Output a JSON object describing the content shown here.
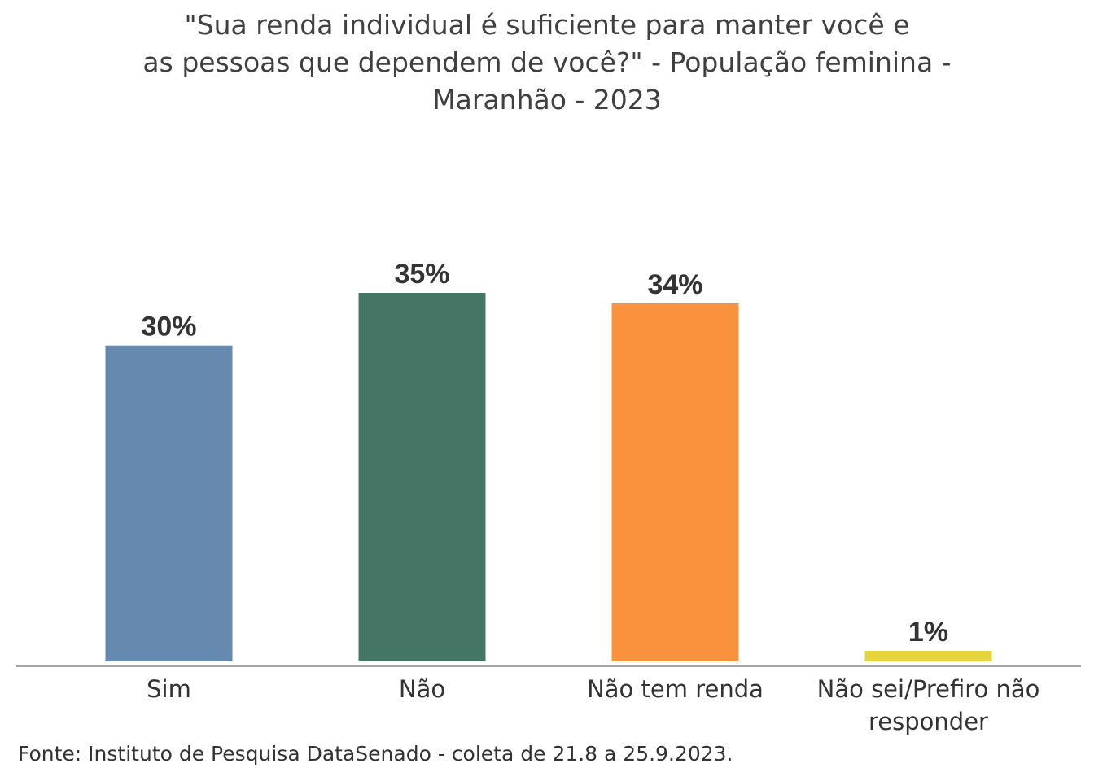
{
  "chart_data": {
    "type": "bar",
    "title_lines": [
      "\"Sua renda individual é suficiente para manter você e",
      "as pessoas que dependem de você?\" - População feminina -",
      "Maranhão - 2023"
    ],
    "categories": [
      [
        "Sim"
      ],
      [
        "Não"
      ],
      [
        "Não tem renda"
      ],
      [
        "Não sei/Prefiro não",
        "responder"
      ]
    ],
    "values": [
      30,
      35,
      34,
      1
    ],
    "value_labels": [
      "30%",
      "35%",
      "34%",
      "1%"
    ],
    "colors": [
      "#6689b0",
      "#447565",
      "#f9913d",
      "#e3d53b"
    ],
    "ylim": [
      0,
      35
    ],
    "grid": false,
    "legend": "none"
  },
  "footer": {
    "source": "Fonte: Instituto de Pesquisa DataSenado - coleta de 21.8 a 25.9.2023."
  }
}
